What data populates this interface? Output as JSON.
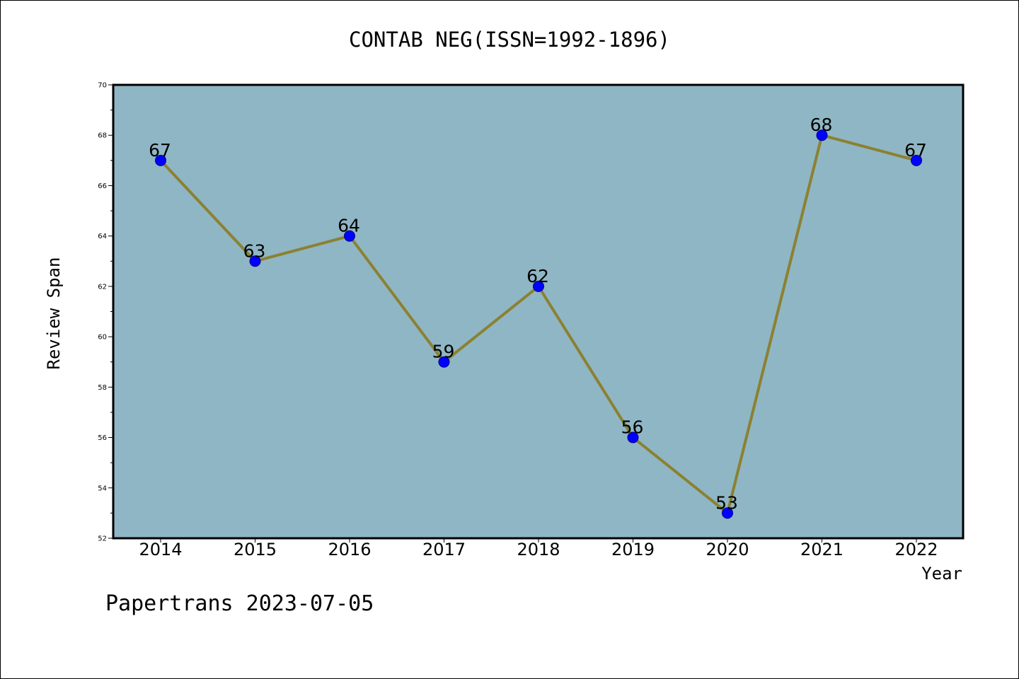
{
  "chart_data": {
    "type": "line",
    "title": "CONTAB NEG(ISSN=1992-1896)",
    "xlabel": "Year",
    "ylabel": "Review Span",
    "categories": [
      "2014",
      "2015",
      "2016",
      "2017",
      "2018",
      "2019",
      "2020",
      "2021",
      "2022"
    ],
    "values": [
      67,
      63,
      64,
      59,
      62,
      56,
      53,
      68,
      67
    ],
    "ylim": [
      52,
      70
    ],
    "yticks": [
      52,
      54,
      56,
      58,
      60,
      62,
      64,
      66,
      68,
      70
    ],
    "grid": false,
    "legend": "none",
    "colors": {
      "plot_background": "#8fb6c4",
      "line": "#8b8132",
      "marker": "#0000ff",
      "marker_edge": "#00008b"
    }
  },
  "footer": "Papertrans 2023-07-05"
}
